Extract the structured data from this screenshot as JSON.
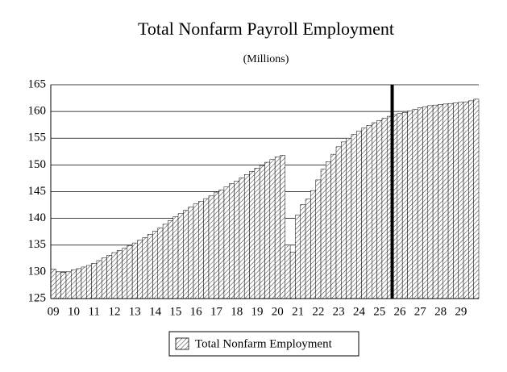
{
  "chart_data": {
    "type": "bar",
    "title": "Total Nonfarm Payroll Employment",
    "subtitle": "(Millions)",
    "categories": [
      "09",
      null,
      null,
      null,
      "10",
      null,
      null,
      null,
      "11",
      null,
      null,
      null,
      "12",
      null,
      null,
      null,
      "13",
      null,
      null,
      null,
      "14",
      null,
      null,
      null,
      "15",
      null,
      null,
      null,
      "16",
      null,
      null,
      null,
      "17",
      null,
      null,
      null,
      "18",
      null,
      null,
      null,
      "19",
      null,
      null,
      null,
      "20",
      null,
      null,
      null,
      "21",
      null,
      null,
      null,
      "22",
      null,
      null,
      null,
      "23",
      null,
      null,
      null,
      "24",
      null,
      null,
      null,
      "25",
      null,
      null,
      null,
      "26",
      null,
      null,
      null,
      "27",
      null,
      null,
      null,
      "28",
      null,
      null,
      null,
      "29",
      null,
      null,
      null
    ],
    "series": [
      {
        "name": "Total Nonfarm Employment",
        "color": "#000000",
        "values": [
          130.5,
          130.0,
          129.9,
          130.0,
          130.4,
          130.6,
          130.9,
          131.2,
          131.6,
          132.1,
          132.6,
          133.1,
          133.6,
          134.0,
          134.4,
          134.9,
          135.4,
          135.9,
          136.4,
          137.0,
          137.6,
          138.2,
          138.9,
          139.6,
          140.3,
          140.9,
          141.5,
          142.1,
          142.7,
          143.2,
          143.7,
          144.2,
          144.8,
          145.3,
          145.9,
          146.5,
          147.0,
          147.6,
          148.2,
          148.8,
          149.4,
          149.9,
          150.5,
          151.0,
          151.5,
          151.8,
          135.0,
          133.7,
          140.6,
          142.6,
          143.6,
          145.2,
          147.2,
          149.2,
          150.6,
          152.0,
          153.4,
          154.3,
          155.0,
          155.7,
          156.3,
          156.9,
          157.4,
          157.9,
          158.3,
          158.7,
          159.1,
          159.4,
          159.6,
          159.8,
          160.1,
          160.4,
          160.7,
          160.9,
          161.1,
          161.2,
          161.3,
          161.4,
          161.5,
          161.6,
          161.7,
          161.8,
          162.0,
          162.3
        ]
      }
    ],
    "ylim": [
      125,
      165
    ],
    "yticks": [
      125,
      130,
      135,
      140,
      145,
      150,
      155,
      160,
      165
    ],
    "grid": true,
    "vline_after_index": 66,
    "legend": "bottom"
  }
}
